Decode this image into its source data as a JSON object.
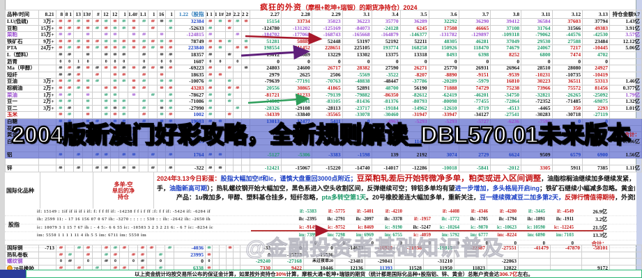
{
  "title": {
    "t1": "疯狂的外资",
    "t2": "（摩根+乾坤+瑞银）的期货净持仓）2024"
  },
  "banner": "2004版新澳门好彩攻略，全新规则解读_DBL570.01未来版本",
  "watermark": "@金融投资者基础知识普及",
  "table": {
    "header": {
      "label": "品种/时间",
      "first": "8.21",
      "narrowA": [
        "8",
        "8 1",
        "13",
        "13#",
        "#",
        "12",
        "12",
        "1",
        "1.4#",
        "1.1",
        "1",
        "16",
        "1"
      ],
      "stock_col": "1.22（股指",
      "narrowB": [
        "1 1",
        "1 1#",
        "2#",
        "2.2",
        "2 2"
      ],
      "dates": [
        "2.27",
        "2.28",
        "2.29",
        "3.1",
        "3.4",
        "3.5",
        "3.6",
        "3.7",
        "3.8",
        "3.11",
        "3.12",
        "3.13"
      ],
      "amount": "持仓金额9.7"
    },
    "rows": [
      {
        "name": "LU(低硫)",
        "qty": "3万+",
        "hA": "r r g r r g r g r g r k g",
        "v122": "32384",
        "vc": "b",
        "hB": "r g r g r",
        "vals": [
          "15154",
          "33734",
          "35023",
          "36223",
          "35770",
          "36289",
          "32292",
          "36290",
          "39412",
          "36584",
          "37603",
          "37794"
        ],
        "cols": "g r p p p p g p p p r k",
        "amt": "1.43亿"
      },
      {
        "name": "豆粕",
        "qty": "15万+",
        "hA": "r r r r g r g g r . r . g",
        "v122": "-52633",
        "vc": "k",
        "hB": "g . r . .",
        "vals": [
          "-124780",
          "-131202",
          "-125169",
          "-84073",
          "-24128",
          "6245",
          "17508",
          "46665",
          "37108",
          "31764",
          "31566",
          "49383"
        ],
        "cols": "k p p p g r r r g g k r",
        "amt": "3.91亿"
      },
      {
        "name": "菜粕",
        "lc": "p",
        "qty": "15万+",
        "hA": "p p . p . p p . p p . p .",
        "v122": "-124815",
        "vc": "p",
        "hB": "p . . p .",
        "vals": [
          "-184702",
          "-177068",
          "-168743",
          "-165668",
          "-164879",
          "-146377",
          "-131782",
          "-129897",
          "-109318",
          "-79062",
          "-44576",
          "-42530"
        ],
        "cols": "p p p p p g p p g g g g",
        "amt": "3.57亿",
        "ac": "p"
      },
      {
        "name": "铁矿石",
        "qty": "9万+",
        "hA": "r r g r r g g r r g r g r",
        "v122": "78749",
        "vc": "k",
        "hB": "r r g . g",
        "vals": [
          "51281",
          "50889",
          "52448",
          "53197",
          "52192",
          "52211",
          "48305",
          "46281",
          "37049",
          "29530",
          "27588",
          "23484"
        ],
        "cols": "g r k k k k g g g g g k",
        "amt": "12.12亿"
      },
      {
        "name": "PTA",
        "qty": "24万+",
        "hA": "r g r r g r r g r r g r r",
        "v122": "223840",
        "vc": "b",
        "hB": "r g . r r",
        "vals": [
          "198554",
          "211452",
          "228651",
          "225105",
          "193774",
          "168258",
          "150926",
          "118470",
          "74679",
          "24067",
          "7217",
          "-10445"
        ],
        "cols": "g r r k g g g g g g r r",
        "amt": "5.06亿"
      },
      {
        "name": "L（塑料）",
        "qty": "",
        "hA": "k k . k . k k k . k . k k",
        "v122": "18357",
        "vc": "k",
        "hB": "k . k . .",
        "vals": [
          "13012",
          "13089",
          "13229",
          "13302",
          "13375",
          "13318",
          "8493",
          "6398",
          "8252",
          "6800",
          "7474",
          "4702"
        ],
        "cols": "k k k k k k g g r g r g",
        "amt": ""
      },
      {
        "name": "沥青",
        "qty": "",
        "hA": "0 0 1 0 . 0 0 0 . 0 . 0 0",
        "v122": "1607",
        "vc": "k",
        "hB": "0 0 . 0 .",
        "vals": [
          "0",
          "0",
          "0",
          "0",
          "0",
          "0",
          "0",
          "0",
          "0",
          "0",
          "0",
          "0"
        ],
        "cols": "k k k k k k k k k k k k",
        "amt": ""
      },
      {
        "name": "Ma（甲醇）",
        "qty": "",
        "hA": "k r k r k r r k r k r k r",
        "v122": "-69223",
        "vc": "k",
        "hB": "r . r . k",
        "vals": [
          "24803",
          "24600",
          "26717",
          "28382",
          "27590",
          "26271",
          "25770",
          "26931",
          "26964",
          "28510",
          "28080",
          "24927"
        ],
        "cols": "k k r r k r k k k k k r",
        "amt": ""
      },
      {
        "name": "短纤",
        "qty": "",
        "hA": "k k r . r . r r . r . r .",
        "v122": "18635",
        "vc": "k",
        "hB": "r r . . .",
        "vals": [
          "2979",
          "2625",
          "2506",
          "-5569",
          "-3522",
          "-8207",
          "-8890",
          "-9151",
          "-9539",
          "-10231",
          "-10735",
          "-10419"
        ],
        "cols": "k k k g g r r r r r k r",
        "amt": ""
      },
      {
        "name": "豆油",
        "qty": "3万+",
        "hA": "r g r g g . g g r g . g g",
        "v122": "-10076",
        "vc": "k",
        "hB": "g . g . .",
        "vals": [
          "-79639",
          "-77191",
          "-70763",
          "-48838",
          "-48447",
          "-37786",
          "-20289",
          "-5979",
          "16810",
          "30223",
          "36511",
          "53313"
        ],
        "cols": "k g g g k g g g r r r r",
        "amt": "1.46亿"
      },
      {
        "name": "棕榈油",
        "qty": "2万+",
        "hA": "r r g r . r r . r r . r r",
        "v122": "43283",
        "vc": "r",
        "hB": "r . r r .",
        "vals": [
          "20556",
          "30865",
          "41865",
          "52891",
          "48700",
          "56190",
          "71888",
          "74729",
          "75238",
          "73966",
          "75572",
          "81456"
        ],
        "cols": "g r r k g k r r r r r r",
        "amt": "0.377亿"
      },
      {
        "name": "菜油",
        "lc": "p",
        "qty": "1万+",
        "hA": "p g . p . g g . p . g . g",
        "v122": "-78627",
        "vc": "k",
        "hB": "g . g . .",
        "vals": [
          "-81721",
          "-81233",
          "-79139",
          "-79882",
          "-86350",
          "-82612",
          "-62419",
          "-46201",
          "-34750",
          "-32821",
          "-26265",
          "-25092"
        ],
        "cols": "r r g g r g g g g g g g",
        "amt": "1.79亿",
        "ac": "p"
      },
      {
        "name": "豆一",
        "qty": "2万+",
        "hA": "g g . g . g g g . g . g g",
        "v122": "-71086",
        "vc": "k",
        "hB": "g . g . .",
        "vals": [
          "-74502",
          "-79841",
          "-83105",
          "-81436",
          "-81376",
          "-80793",
          "-80098",
          "-77455",
          "-72864",
          "-72352",
          "-71485",
          "-69875"
        ],
        "cols": "g g g g g g g g g k k g",
        "amt": "1.32亿"
      },
      {
        "name": "豆二",
        "qty": "3万+",
        "hA": "g k . g . g k g . g . k g",
        "v122": "-27990",
        "vc": "k",
        "hB": "g . . g .",
        "vals": [
          "-28326",
          "-29108",
          "-28113",
          "-23717",
          "-19184",
          "-14962",
          "-12610",
          "-8719",
          "-4513",
          "-4465",
          "350",
          "2293"
        ],
        "cols": "g k k g g g g g g k r r",
        "amt": "1.01亿"
      },
      {
        "name": "玉米",
        "lc": "r",
        "qty": "",
        "hA": "r g . r . g r g . r . g r",
        "v122": "1002",
        "vc": "b",
        "hB": "g . r . .",
        "vals": [
          "-34339",
          "-33840",
          "-35565",
          "-33078",
          "-30460",
          "-31947",
          "-33947",
          "-34127",
          "-27541",
          "-30283",
          "-30718",
          "-27119"
        ],
        "cols": "r k r g g r r k g k k g",
        "amt": ""
      },
      {
        "name": "白糖",
        "bg": "blue",
        "qty": "",
        "hA": "b b . b b . b b . b . b b",
        "v122": "19603",
        "vc": "b",
        "hB": "b b . . .",
        "vals": [
          "13013",
          "12477",
          "5411",
          "0",
          "-4963",
          "-5293",
          "-5293",
          "-5727",
          "-6236",
          "-7595",
          "0",
          "0"
        ],
        "cols": "b b b b p p p p p p b b",
        "amt": ""
      },
      {
        "name": "花生",
        "bg": "blue",
        "qty": "",
        "hA": "b . b . b . b . b . b . b",
        "v122": "",
        "vc": "b",
        "hB": "b . . . .",
        "vals": [
          "",
          "",
          "",
          "",
          "",
          "",
          "",
          "",
          "",
          "",
          "",
          ""
        ],
        "cols": "b b b b b b b b b b b b",
        "amt": ""
      },
      {
        "name": "黄金",
        "bg": "blue",
        "qty": "",
        "hA": "b . b . b . b . b . b . b",
        "v122": "",
        "vc": "b",
        "hB": ". b . . .",
        "vals": [
          "",
          "",
          "",
          "",
          "",
          "",
          "",
          "",
          "",
          "",
          "",
          ""
        ],
        "cols": "b b b b b b b b b b b b",
        "amt": "合计：",
        "ac": "r"
      },
      {
        "name": "白银",
        "bg": "blue",
        "qty": "",
        "hA": "b . b . b . b . b . b . b",
        "v122": "11413",
        "vc": "b",
        "hB": "b . . . .",
        "vals": [
          "",
          "",
          "",
          "",
          "",
          "11475",
          "12127",
          "12060",
          "12268",
          "",
          "",
          ""
        ],
        "cols": "b b b b b b b b b b b b",
        "amt": "0.596亿"
      },
      {
        "name": "",
        "bg": "blue",
        "qty": "",
        "hA": ". . . . . . . . . . . . .",
        "v122": "",
        "vc": "k",
        "hB": ". . . . .",
        "vals": [
          "",
          "",
          "",
          "",
          "",
          "",
          "",
          "",
          "",
          "",
          "",
          ""
        ],
        "cols": "k k k k k k k k k k k k",
        "amt": ""
      },
      {
        "name": "铝",
        "bg": "blue",
        "qty": "",
        "hA": "b . b . b b . b b . b . b",
        "v122": "1764",
        "vc": "b",
        "hB": "b b . . .",
        "vals": [
          "-5127",
          "-5306",
          "-3383",
          "-1598",
          "139",
          "2192",
          "3074",
          "2729",
          "6624",
          "9509",
          "6579",
          "6900"
        ],
        "cols": "g g b b k k b b b k b b",
        "amt": "1.56亿"
      },
      {
        "name": "",
        "qty": "",
        "hA": ". . . . . . . . . . . . .",
        "v122": "",
        "vc": "k",
        "hB": ". . . . .",
        "vals": [
          "",
          "",
          "",
          "",
          "",
          "",
          "",
          "",
          "",
          "",
          "",
          ""
        ],
        "cols": "k k k k k k k k k k k k",
        "amt": ""
      },
      {
        "name": "锌",
        "qty": "",
        "hA": "k . k . k k . k k . k . k",
        "v122": "-322",
        "vc": "k",
        "hB": "k k . . .",
        "vals": [
          "-12421",
          "-15067",
          "-15220",
          "-14740",
          "-14017",
          "-12286",
          "-10018",
          "-5841",
          "-2012",
          "3305",
          "5911",
          "7385"
        ],
        "cols": "g k k k k k g g g r k k",
        "amt": "1.11亿"
      }
    ]
  },
  "intl": {
    "label": "国际化品种",
    "side": "多单-空单后的净持仓",
    "lines": [
      {
        "pad": 0,
        "segs": [
          {
            "t": "2024年3.13今日彩蛋：",
            "c": "r"
          },
          {
            "t": "股指大幅加空if和ic，谨慎大盘重回3000点附近；",
            "c": "b"
          },
          {
            "t": "豆菜粕轧差后开始转微净多单，粕类或进入区间调整",
            "c": "R"
          },
          {
            "t": "，油脂棕榈油继续加多继续发紧，",
            "c": "k"
          },
          {
            "t": "豆油加多到发紧，",
            "c": "r"
          },
          {
            "t": "小幅",
            "c": "k"
          },
          {
            "t": "减空菜油",
            "c": "g"
          },
          {
            "t": "（外资油脂",
            "c": "k"
          },
          {
            "t": "净多单10.9万",
            "c": "r"
          }
        ]
      },
      {
        "pad": 0,
        "segs": [
          {
            "t": "手，",
            "c": "k"
          },
          {
            "t": "油脂新高可期",
            "c": "b"
          },
          {
            "t": "）；热轧螺纹钢开始大幅加空，黑色系进入空头收割区间，反弹继续可空；锌铝多单均有望",
            "c": "k"
          },
          {
            "t": "进一步增加，多头格局开启ing",
            "c": "b"
          },
          {
            "t": "；铁矿石继续小幅减多忽略。黄金白银小幅连续加多单，",
            "c": "k"
          },
          {
            "t": "金银行情大概率未结束",
            "c": "R"
          },
          {
            "t": "；原油下属",
            "c": "k"
          }
        ]
      },
      {
        "pad": 28,
        "segs": [
          {
            "t": "产品：1u微加多，甲醇、塑料基仓挂多，短纤忽略，",
            "c": "k"
          },
          {
            "t": "pta多转空第1天",
            "c": "g"
          },
          {
            "t": "。20号橡胶差连大幅加多单，重新关注，",
            "c": "k"
          },
          {
            "t": "豆一继续微减豆二加多第2天，",
            "c": "b"
          },
          {
            "t": "反弹行情值得期待",
            "c": "r"
          },
          {
            "t": "，外资欧线",
            "c": "k"
          },
          {
            "t": "847手多单",
            "c": "r"
          }
        ]
      }
    ],
    "index_label": "股指",
    "index_rows": [
      {
        "left": "if: 15149   :   1if   if  ii    if   i  if:   f:   f  f  ff  if: -14238   f f i f ff  :f:  f  f  if: -5424  if: -6204  if",
        "cells": [
          "if: -5383",
          "if: -5775",
          "if: -5401",
          "if: -4210",
          "",
          "if: -4408",
          "if: -4346",
          "if: -4280",
          "if: -3445",
          "if: -4549"
        ],
        "cols": "g r r r . r r r g r",
        "total": "26.9亿",
        "tc": "k"
      },
      {
        "left": "ih: 2599   11: - 17 16   156 07   0   67   ih: -3270    : : : : :   530  :  :  ih: -2642  ih: -2650  ih",
        "cells": [
          "ih: -2395",
          "ih: -2791",
          "ih: -2097",
          "ih: -3378",
          "if: -1957",
          "ih: -1772",
          "ih: -1705",
          "ih: -1794",
          "ih: -1891",
          "ih: -1911"
        ],
        "cols": "k k k k r g k k k k",
        "total": "3.2亿",
        "tc": "k"
      },
      {
        "left": "ic: 10079   3 1 15  7 67   ih :  - 4   5:-   6 6 55   ic: -10503   3 2 3 2 21  6: - 6 7   ic: -8234  ic",
        "cells": [
          "ic: -9149",
          "ic: -9752",
          "ic: 8469",
          "ic: -9190",
          "ih: -5247",
          "ic: -10264",
          "ic: -9870",
          "ic: -10623",
          "ic: 10590",
          "ic: -12245"
        ],
        "cols": "r r r g k g g g g r",
        "total": "21.5亿",
        "tc": "k"
      },
      {
        "left": "im: 5550   1 1 1 1 11  4  ih  5 5   im: 6711   im: 5550   im",
        "cells": [
          "im: 7399",
          "im: 7298",
          "im: 6969",
          "im: 6755",
          "ic: -4059",
          "im: 5792",
          "im: 6777",
          "im: -8224",
          "im: 6890",
          "im: 7103"
        ],
        "cols": "g g g g r g g r g g",
        "total": "13.3亿",
        "tc": "k"
      },
      {
        "left": "",
        "cells": [
          "0",
          "0",
          "0",
          "0",
          "0",
          "0",
          "0",
          "0",
          "0",
          "0"
        ],
        "cols": "k k k k k k k k k k",
        "total": "合计：",
        "tc": "r"
      }
    ],
    "rows": [
      {
        "name": "国际铜",
        "qty": "-713",
        "hA": "r . g r . r g r . r r . g",
        "v122": "-4036",
        "vc": "b",
        "hB": "g . . r .",
        "vals": [
          "-33",
          "0",
          "0",
          "-14623",
          "-16928",
          "-21038",
          "-19815",
          "-22387",
          "-27551",
          "-41479",
          "-47870",
          "-58101"
        ],
        "cols": "k k k k r r g r r r r r",
        "amt": ""
      },
      {
        "name": "热轧卷板",
        "qty": "",
        "hA": "r g . r . g r . r r . g .",
        "v122": "23995",
        "vc": "b",
        "hB": "r . . . .",
        "vals": [
          "0",
          "-15773",
          "-15536",
          "",
          "",
          "",
          "",
          "",
          "",
          "",
          "",
          ""
        ],
        "cols": "k k k k k k k k k k k k",
        "amt": ""
      },
      {
        "name": "螺纹钢",
        "lc": "p",
        "qty": "",
        "hA": "0 k . 0 . k 0 . 0 k . 0 .",
        "v122": "0",
        "vc": "k",
        "hB": "0 . . . .",
        "vals": [
          "-29240",
          "-27168",
          "未过夜单20",
          "-23481",
          "-29841",
          "",
          "-31210",
          "",
          "-22063",
          "",
          "",
          ""
        ],
        "cols": "g g k k k k k k k k k k",
        "amt": ""
      },
      {
        "name": "20号橡胶",
        "icon": true,
        "qty": "",
        "hA": "r . r . g . r r . r . g .",
        "v122": "6338",
        "vc": "g",
        "hB": "r . . . .",
        "vals": [
          "7330",
          "9422",
          "10446",
          "12136",
          "11393",
          "11528",
          "11950",
          "11823",
          "12822",
          "",
          "",
          "9172"
        ],
        "cols": "r r k k b k k k k k k k",
        "amt": ""
      }
    ]
  },
  "footer": {
    "segs": [
      {
        "t": "以上资金统计均按交易所公布的保证金计算，如果按外资持仓",
        "c": "k"
      },
      {
        "t": "30%",
        "c": "r"
      },
      {
        "t": "计算，摩根大通+乾坤+瑞银的期货（统计都是国际化品种+股指铝、锌、黄金）总账户资金达",
        "c": "k"
      },
      {
        "t": "306.7亿",
        "c": "r"
      },
      {
        "t": "左右。",
        "c": "k"
      }
    ]
  }
}
